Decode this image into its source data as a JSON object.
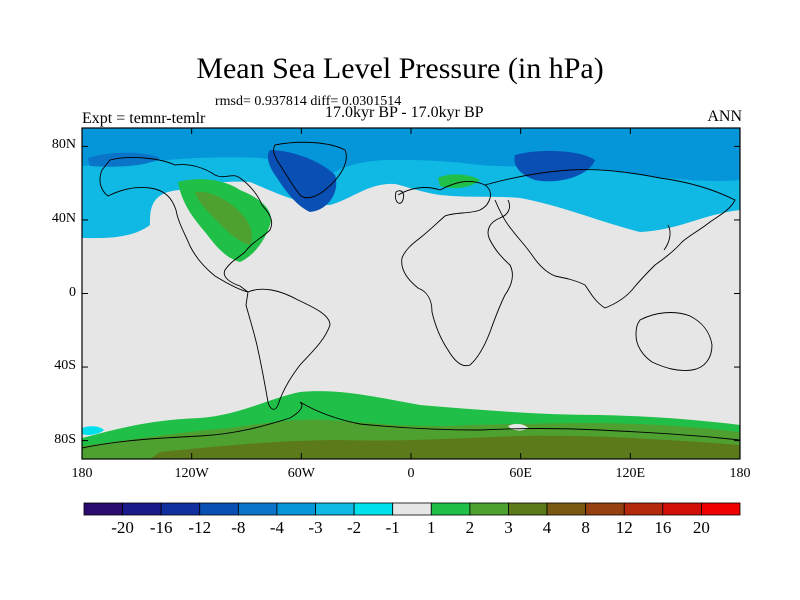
{
  "title": "Mean Sea Level Pressure (in hPa)",
  "stats": "rmsd= 0.937814 diff= 0.0301514",
  "experiment": "Expt = temnr-temlr",
  "period": "17.0kyr BP - 17.0kyr BP",
  "season": "ANN",
  "map": {
    "projection": "cylindrical-equidistant",
    "lon_range": [
      -180,
      180
    ],
    "lat_range": [
      -90,
      90
    ],
    "x_ticks": [
      {
        "value": -180,
        "label": "180"
      },
      {
        "value": -120,
        "label": "120W"
      },
      {
        "value": -60,
        "label": "60W"
      },
      {
        "value": 0,
        "label": "0"
      },
      {
        "value": 60,
        "label": "60E"
      },
      {
        "value": 120,
        "label": "120E"
      },
      {
        "value": 180,
        "label": "180"
      }
    ],
    "y_ticks": [
      {
        "value": 80,
        "label": "80N"
      },
      {
        "value": 40,
        "label": "40N"
      },
      {
        "value": 0,
        "label": "0"
      },
      {
        "value": -40,
        "label": "40S"
      },
      {
        "value": -80,
        "label": "80S"
      }
    ],
    "background_color": "#e6e6e6"
  },
  "colorbar": {
    "levels": [
      "-20",
      "-16",
      "-12",
      "-8",
      "-4",
      "-3",
      "-2",
      "-1",
      "1",
      "2",
      "3",
      "4",
      "8",
      "12",
      "16",
      "20"
    ],
    "colors": [
      "#2a0a6e",
      "#1a1a8c",
      "#1030a0",
      "#0a4fb4",
      "#0a74c8",
      "#0496d8",
      "#10b8e4",
      "#00e0ec",
      "#e6e6e6",
      "#20c048",
      "#4ea030",
      "#5c7a1c",
      "#7a5a12",
      "#964010",
      "#b4280c",
      "#d21008",
      "#f00000"
    ]
  }
}
